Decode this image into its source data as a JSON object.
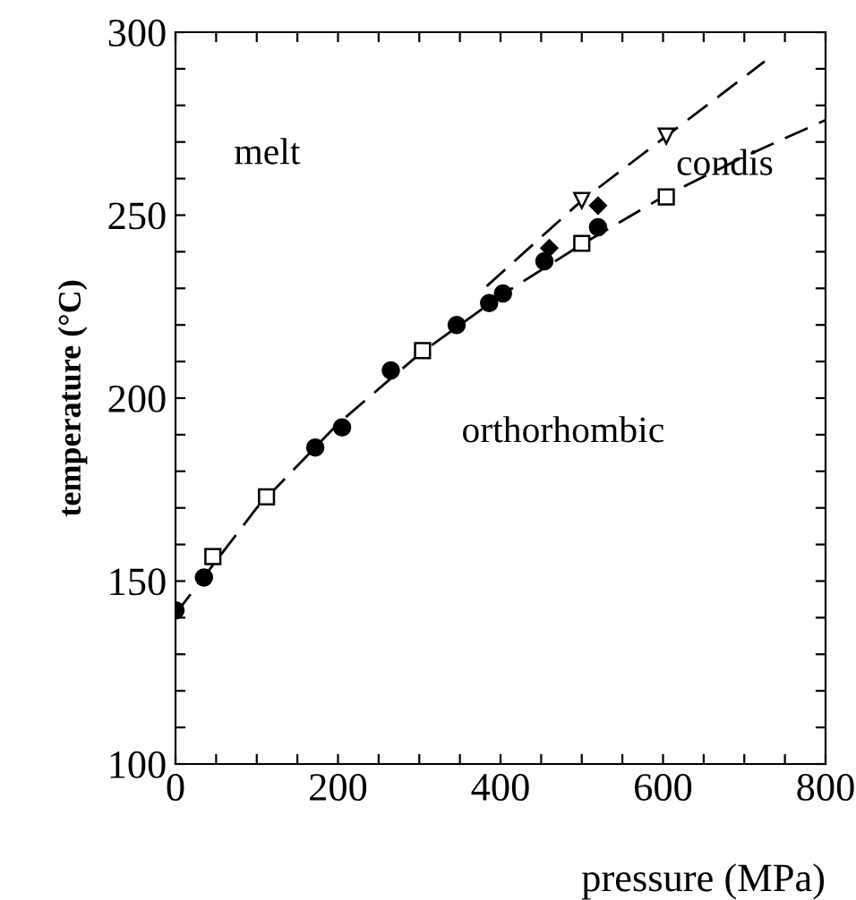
{
  "chart_data": {
    "type": "scatter",
    "xlabel": "pressure (MPa)",
    "ylabel": "temperature (°C)",
    "xlim": [
      0,
      800
    ],
    "ylim": [
      100,
      300
    ],
    "xticks": [
      0,
      {
        "value": 50,
        "label": null
      },
      {
        "value": 100,
        "label": null
      },
      {
        "value": 150,
        "label": null
      },
      200,
      {
        "value": 250,
        "label": null
      },
      {
        "value": 300,
        "label": null
      },
      {
        "value": 350,
        "label": null
      },
      400,
      {
        "value": 450,
        "label": null
      },
      {
        "value": 500,
        "label": null
      },
      {
        "value": 550,
        "label": null
      },
      600,
      {
        "value": 650,
        "label": null
      },
      {
        "value": 700,
        "label": null
      },
      {
        "value": 750,
        "label": null
      },
      800
    ],
    "yticks": [
      100,
      {
        "value": 110,
        "label": null
      },
      {
        "value": 120,
        "label": null
      },
      {
        "value": 130,
        "label": null
      },
      {
        "value": 140,
        "label": null
      },
      150,
      {
        "value": 160,
        "label": null
      },
      {
        "value": 170,
        "label": null
      },
      {
        "value": 180,
        "label": null
      },
      {
        "value": 190,
        "label": null
      },
      200,
      {
        "value": 210,
        "label": null
      },
      {
        "value": 220,
        "label": null
      },
      {
        "value": 230,
        "label": null
      },
      {
        "value": 240,
        "label": null
      },
      250,
      {
        "value": 260,
        "label": null
      },
      {
        "value": 270,
        "label": null
      },
      {
        "value": 280,
        "label": null
      },
      {
        "value": 290,
        "label": null
      },
      300
    ],
    "grid": false,
    "legend": false,
    "annotations": [
      "melt",
      "condis",
      "orthorhombic"
    ],
    "series": [
      {
        "type": "line",
        "line_style": "dashed",
        "marker": "none",
        "color": "#000000",
        "x": [
          0,
          100,
          200,
          300,
          400,
          500,
          600,
          700,
          800
        ],
        "values": [
          141,
          170,
          193,
          212,
          228,
          242,
          255,
          266,
          276
        ]
      },
      {
        "type": "line",
        "line_style": "dashed",
        "marker": "none",
        "color": "#000000",
        "x": [
          383,
          500,
          604,
          725
        ],
        "values": [
          230.6,
          254,
          271.6,
          292
        ]
      },
      {
        "marker": "circle",
        "color": "#000000",
        "x": [
          0,
          35,
          172,
          205,
          265,
          346,
          386,
          403,
          454,
          520
        ],
        "values": [
          142,
          151,
          186.5,
          192,
          207.6,
          220,
          226,
          228.6,
          237.4,
          246.7
        ]
      },
      {
        "marker": "square",
        "color": "#000000",
        "x": [
          46,
          112,
          304,
          500,
          604
        ],
        "values": [
          156.7,
          173,
          213,
          242.3,
          255
        ]
      },
      {
        "marker": "triangle",
        "color": "#000000",
        "x": [
          500,
          604
        ],
        "values": [
          254,
          271.6
        ]
      },
      {
        "marker": "diamond",
        "color": "#000000",
        "x": [
          460,
          520
        ],
        "values": [
          241,
          252.6
        ]
      }
    ]
  }
}
